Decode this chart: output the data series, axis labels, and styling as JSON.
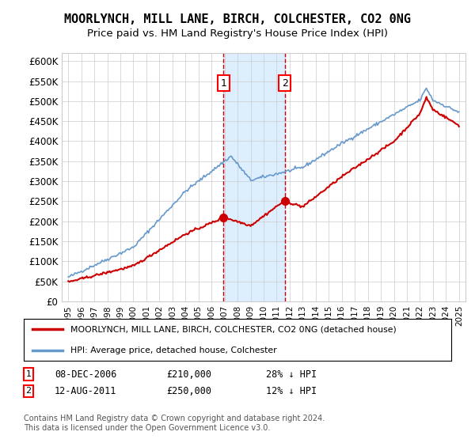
{
  "title": "MOORLYNCH, MILL LANE, BIRCH, COLCHESTER, CO2 0NG",
  "subtitle": "Price paid vs. HM Land Registry's House Price Index (HPI)",
  "ylabel_ticks": [
    "£0",
    "£50K",
    "£100K",
    "£150K",
    "£200K",
    "£250K",
    "£300K",
    "£350K",
    "£400K",
    "£450K",
    "£500K",
    "£550K",
    "£600K"
  ],
  "ylim": [
    0,
    620000
  ],
  "yticks": [
    0,
    50000,
    100000,
    150000,
    200000,
    250000,
    300000,
    350000,
    400000,
    450000,
    500000,
    550000,
    600000
  ],
  "sale1_date": 2006.92,
  "sale1_price": 210000,
  "sale1_label": "1",
  "sale2_date": 2011.62,
  "sale2_price": 250000,
  "sale2_label": "2",
  "legend_line1": "MOORLYNCH, MILL LANE, BIRCH, COLCHESTER, CO2 0NG (detached house)",
  "legend_line2": "HPI: Average price, detached house, Colchester",
  "table_row1": "1    08-DEC-2006         £210,000         28% ↓ HPI",
  "table_row2": "2    12-AUG-2011         £250,000         12% ↓ HPI",
  "footnote": "Contains HM Land Registry data © Crown copyright and database right 2024.\nThis data is licensed under the Open Government Licence v3.0.",
  "hpi_color": "#6699cc",
  "price_color": "#cc0000",
  "shade_color": "#ddeeff",
  "grid_color": "#cccccc",
  "background_color": "#ffffff"
}
